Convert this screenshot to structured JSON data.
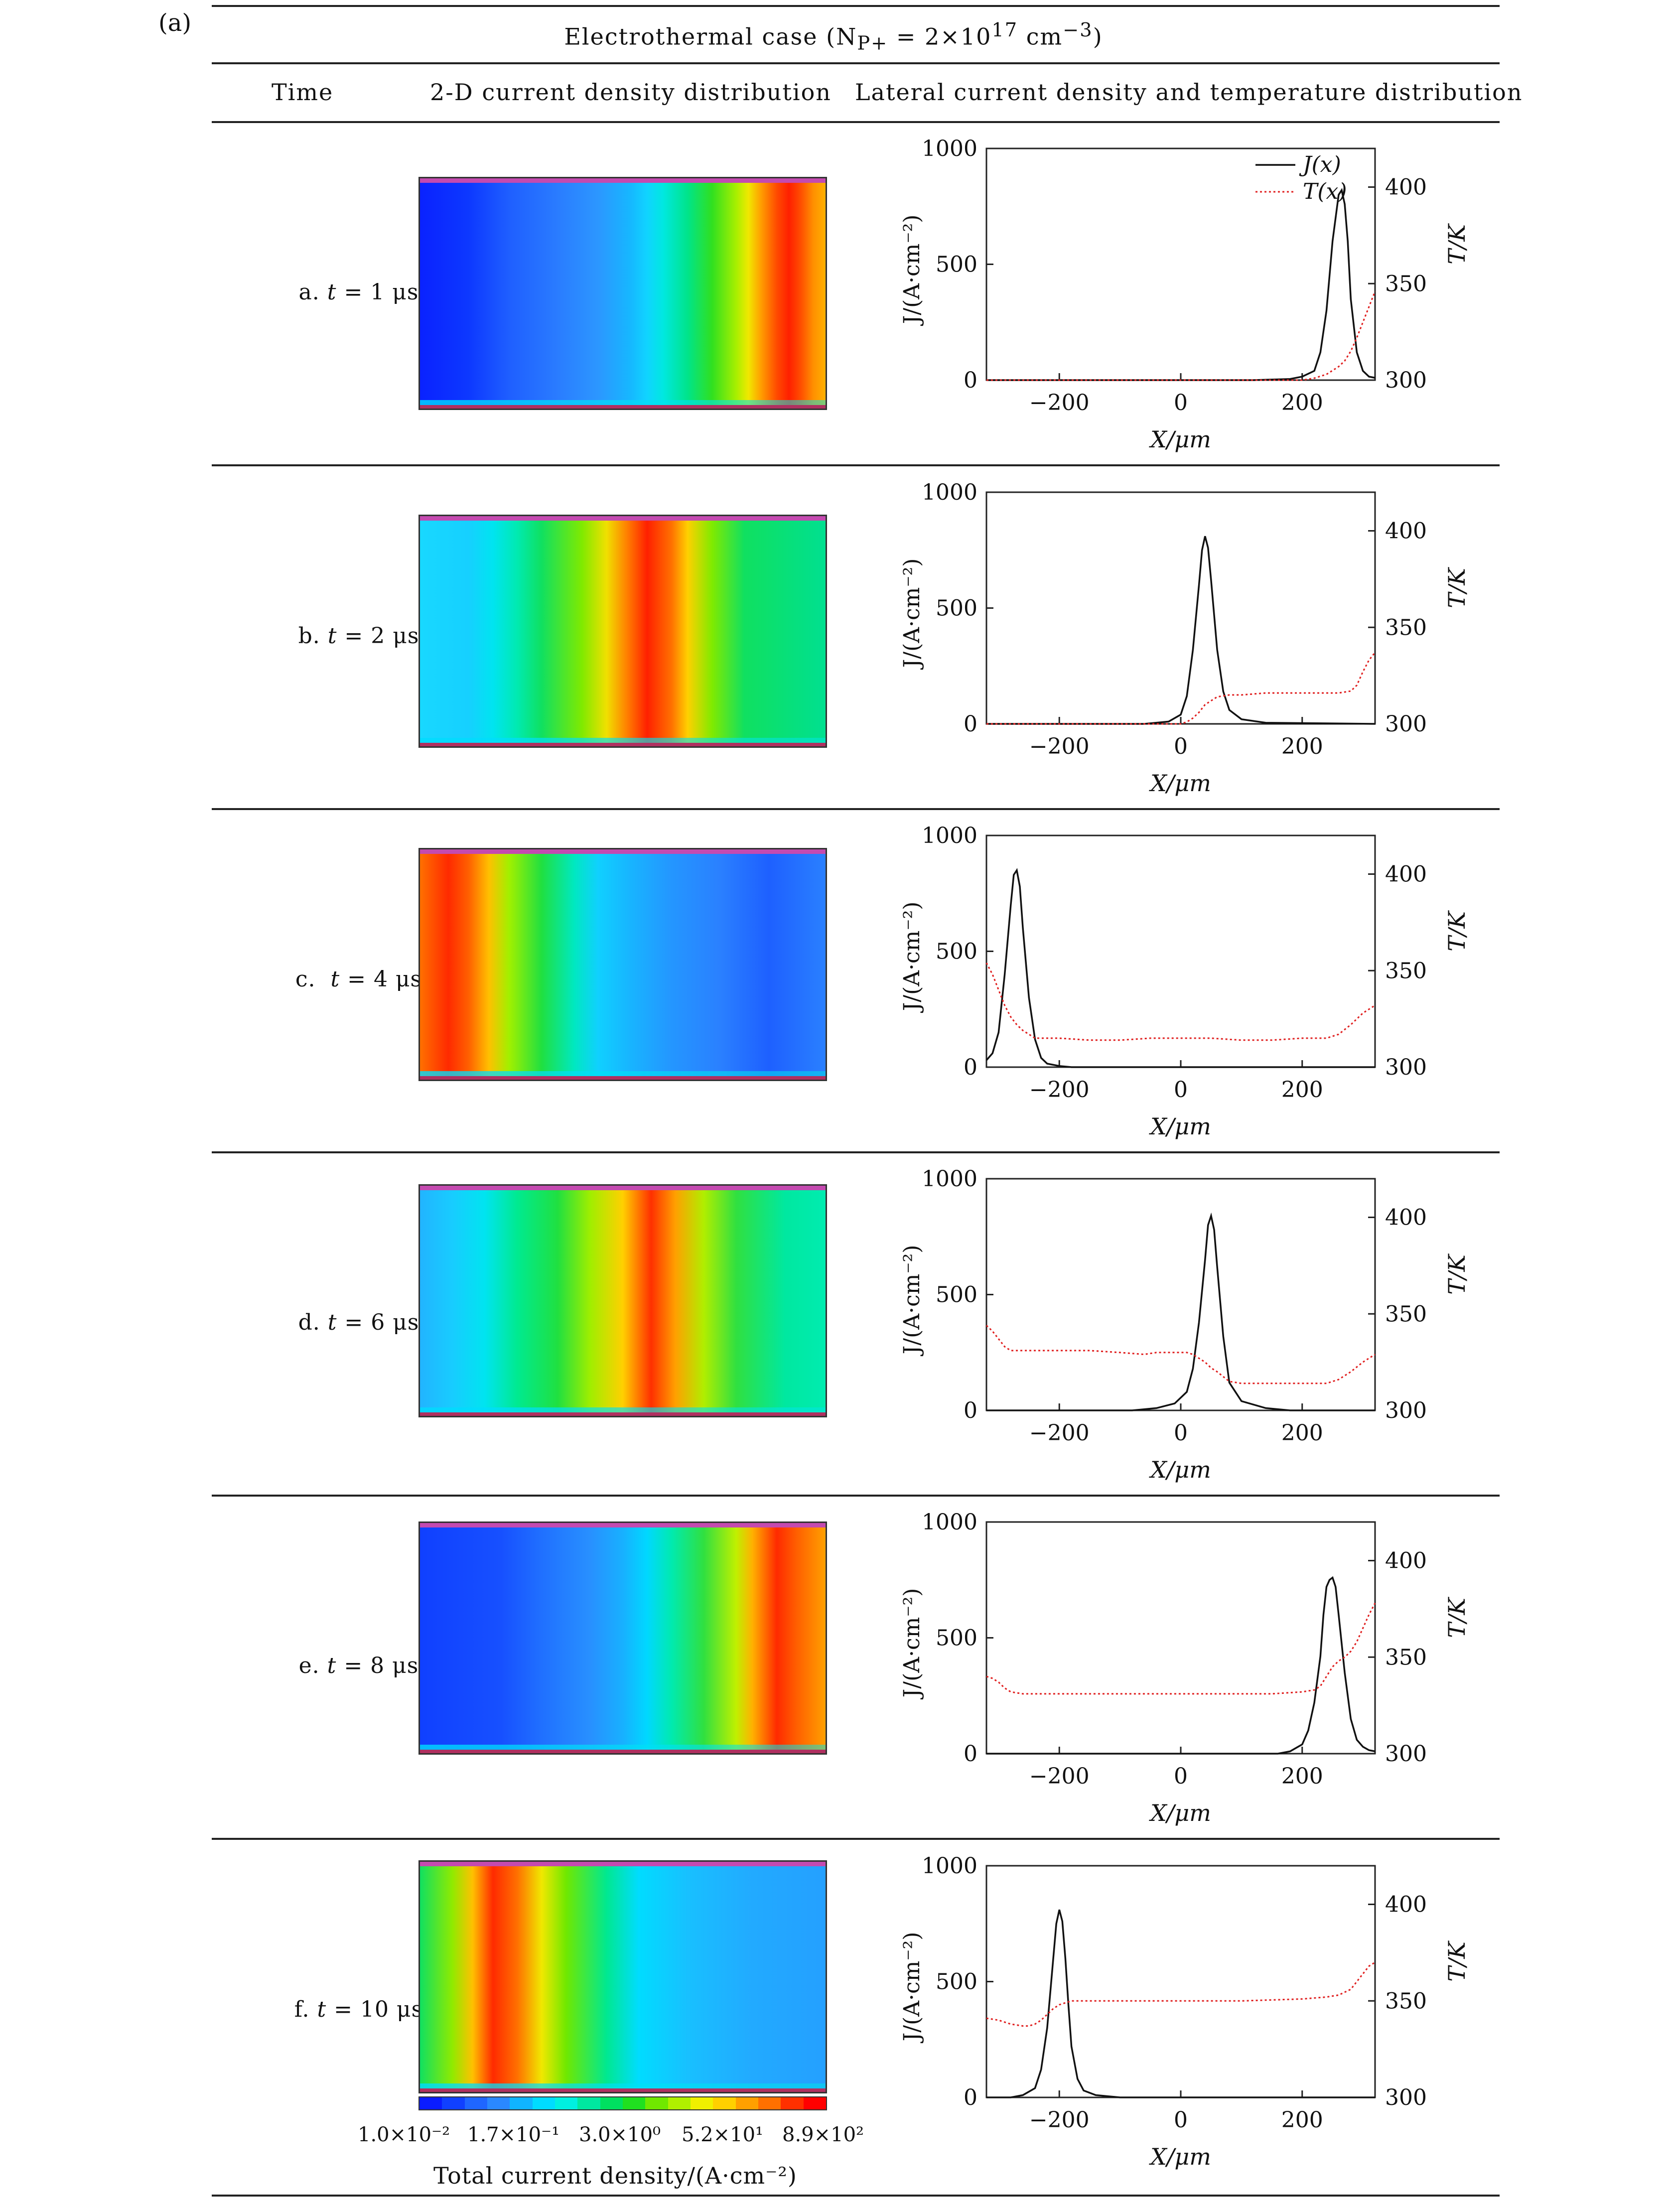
{
  "figure_tag": "(a)",
  "header": {
    "title": "Electrothermal case (N<sub>P+</sub> = 2×10<sup>17</sup> cm<sup>−3</sup>)",
    "title_plain": "Electrothermal case (NP+ = 2×1017 cm−3)",
    "col_time": "Time",
    "col_2d": "2-D current density distribution",
    "col_lateral": "Lateral current density and temperature distribution"
  },
  "rows": [
    {
      "label": "a. t = 1 μs",
      "label_html": "a. <i>t</i> = 1 μs"
    },
    {
      "label": "b. t = 2 μs",
      "label_html": "b. <i>t</i> = 2 μs"
    },
    {
      "label": "c. t = 4 μs",
      "label_html": "c.&nbsp; <i>t</i> = 4 μs"
    },
    {
      "label": "d. t = 6 μs",
      "label_html": "d. <i>t</i> = 6 μs"
    },
    {
      "label": "e. t = 8 μs",
      "label_html": "e. <i>t</i> = 8 μs"
    },
    {
      "label": "f. t = 10 μs",
      "label_html": "f. <i>t</i> = 10 μs"
    }
  ],
  "colorbar": {
    "ticks": [
      "1.0×10⁻²",
      "1.7×10⁻¹",
      "3.0×10⁰",
      "5.2×10¹",
      "8.9×10²"
    ],
    "title": "Total current density/(A·cm⁻²)",
    "colors": [
      "#0a1cff",
      "#1040ff",
      "#1f66ff",
      "#2a88ff",
      "#10b4ff",
      "#00dcff",
      "#00f0e0",
      "#00e8a0",
      "#00e060",
      "#20e020",
      "#70e800",
      "#b0f000",
      "#f0f000",
      "#ffd000",
      "#ffa000",
      "#ff7000",
      "#ff3000",
      "#ff0000"
    ]
  },
  "legend": {
    "j": "J(x)",
    "t": "T(x)"
  },
  "colors": {
    "j_line": "#111111",
    "t_line": "#e02020"
  },
  "chart_data": [
    {
      "type": "line",
      "panel": "a",
      "xlabel": "X/μm",
      "ylabel_left": "J/(A·cm⁻²)",
      "ylabel_right": "T/K",
      "xlim": [
        -320,
        320
      ],
      "ylim_left": [
        0,
        1000
      ],
      "ylim_right": [
        300,
        420
      ],
      "xticks": [
        -200,
        0,
        200
      ],
      "yticks_left": [
        0,
        500,
        1000
      ],
      "yticks_right": [
        300,
        350,
        400
      ],
      "series": [
        {
          "name": "J(x)",
          "axis": "left",
          "x": [
            -320,
            120,
            180,
            200,
            220,
            230,
            240,
            250,
            260,
            265,
            270,
            275,
            280,
            290,
            300,
            310,
            320
          ],
          "y": [
            0,
            0,
            5,
            15,
            40,
            120,
            300,
            600,
            800,
            820,
            760,
            600,
            350,
            120,
            40,
            15,
            10
          ]
        },
        {
          "name": "T(x)",
          "axis": "right",
          "x": [
            -320,
            180,
            200,
            220,
            240,
            260,
            270,
            280,
            290,
            300,
            310,
            320
          ],
          "y": [
            300,
            300,
            300,
            301,
            303,
            307,
            310,
            315,
            322,
            330,
            338,
            346
          ]
        }
      ]
    },
    {
      "type": "line",
      "panel": "b",
      "xlabel": "X/μm",
      "ylabel_left": "J/(A·cm⁻²)",
      "ylabel_right": "T/K",
      "xlim": [
        -320,
        320
      ],
      "ylim_left": [
        0,
        1000
      ],
      "ylim_right": [
        300,
        420
      ],
      "xticks": [
        -200,
        0,
        200
      ],
      "yticks_left": [
        0,
        500,
        1000
      ],
      "yticks_right": [
        300,
        350,
        400
      ],
      "series": [
        {
          "name": "J(x)",
          "axis": "left",
          "x": [
            -320,
            -60,
            -20,
            0,
            10,
            20,
            30,
            35,
            40,
            45,
            50,
            60,
            70,
            80,
            100,
            140,
            320
          ],
          "y": [
            0,
            0,
            10,
            40,
            120,
            320,
            600,
            750,
            810,
            760,
            620,
            320,
            140,
            60,
            20,
            5,
            0
          ]
        },
        {
          "name": "T(x)",
          "axis": "right",
          "x": [
            -320,
            0,
            10,
            20,
            30,
            40,
            60,
            80,
            100,
            140,
            180,
            220,
            260,
            280,
            290,
            300,
            310,
            320
          ],
          "y": [
            300,
            300,
            301,
            303,
            306,
            310,
            314,
            315,
            315,
            316,
            316,
            316,
            316,
            317,
            320,
            327,
            333,
            337
          ]
        }
      ]
    },
    {
      "type": "line",
      "panel": "c",
      "xlabel": "X/μm",
      "ylabel_left": "J/(A·cm⁻²)",
      "ylabel_right": "T/K",
      "xlim": [
        -320,
        320
      ],
      "ylim_left": [
        0,
        1000
      ],
      "ylim_right": [
        300,
        420
      ],
      "xticks": [
        -200,
        0,
        200
      ],
      "yticks_left": [
        0,
        500,
        1000
      ],
      "yticks_right": [
        300,
        350,
        400
      ],
      "series": [
        {
          "name": "J(x)",
          "axis": "left",
          "x": [
            -320,
            -310,
            -300,
            -290,
            -280,
            -275,
            -270,
            -265,
            -260,
            -250,
            -240,
            -230,
            -220,
            -200,
            -180,
            320
          ],
          "y": [
            30,
            60,
            150,
            400,
            700,
            830,
            850,
            780,
            600,
            300,
            120,
            40,
            15,
            5,
            0,
            0
          ]
        },
        {
          "name": "T(x)",
          "axis": "right",
          "x": [
            -320,
            -310,
            -300,
            -290,
            -280,
            -270,
            -260,
            -250,
            -240,
            -220,
            -200,
            -150,
            -100,
            -50,
            0,
            50,
            100,
            150,
            200,
            240,
            260,
            280,
            300,
            320
          ],
          "y": [
            354,
            348,
            340,
            332,
            326,
            322,
            319,
            317,
            315,
            315,
            315,
            314,
            314,
            315,
            315,
            315,
            314,
            314,
            315,
            315,
            317,
            322,
            328,
            332
          ]
        }
      ]
    },
    {
      "type": "line",
      "panel": "d",
      "xlabel": "X/μm",
      "ylabel_left": "J/(A·cm⁻²)",
      "ylabel_right": "T/K",
      "xlim": [
        -320,
        320
      ],
      "ylim_left": [
        0,
        1000
      ],
      "ylim_right": [
        300,
        420
      ],
      "xticks": [
        -200,
        0,
        200
      ],
      "yticks_left": [
        0,
        500,
        1000
      ],
      "yticks_right": [
        300,
        350,
        400
      ],
      "series": [
        {
          "name": "J(x)",
          "axis": "left",
          "x": [
            -320,
            -80,
            -40,
            -10,
            10,
            20,
            30,
            40,
            45,
            50,
            55,
            60,
            70,
            80,
            100,
            140,
            180,
            320
          ],
          "y": [
            0,
            0,
            10,
            30,
            80,
            180,
            380,
            650,
            800,
            840,
            780,
            620,
            320,
            120,
            40,
            10,
            0,
            0
          ]
        },
        {
          "name": "T(x)",
          "axis": "right",
          "x": [
            -320,
            -310,
            -300,
            -290,
            -280,
            -270,
            -250,
            -200,
            -150,
            -100,
            -60,
            -40,
            -20,
            0,
            10,
            20,
            30,
            40,
            50,
            60,
            80,
            100,
            150,
            200,
            240,
            260,
            280,
            300,
            320
          ],
          "y": [
            344,
            341,
            337,
            333,
            331,
            331,
            331,
            331,
            331,
            330,
            329,
            330,
            330,
            330,
            330,
            329,
            327,
            325,
            322,
            320,
            315,
            314,
            314,
            314,
            314,
            316,
            320,
            325,
            329
          ]
        }
      ]
    },
    {
      "type": "line",
      "panel": "e",
      "xlabel": "X/μm",
      "ylabel_left": "J/(A·cm⁻²)",
      "ylabel_right": "T/K",
      "xlim": [
        -320,
        320
      ],
      "ylim_left": [
        0,
        1000
      ],
      "ylim_right": [
        300,
        420
      ],
      "xticks": [
        -200,
        0,
        200
      ],
      "yticks_left": [
        0,
        500,
        1000
      ],
      "yticks_right": [
        300,
        350,
        400
      ],
      "series": [
        {
          "name": "J(x)",
          "axis": "left",
          "x": [
            -320,
            160,
            180,
            200,
            210,
            220,
            230,
            235,
            240,
            245,
            250,
            255,
            260,
            270,
            280,
            290,
            300,
            310,
            320
          ],
          "y": [
            0,
            0,
            10,
            40,
            100,
            220,
            420,
            600,
            720,
            750,
            760,
            720,
            600,
            350,
            150,
            60,
            30,
            15,
            10
          ]
        },
        {
          "name": "T(x)",
          "axis": "right",
          "x": [
            -320,
            -310,
            -300,
            -290,
            -280,
            -260,
            -200,
            -150,
            -100,
            -50,
            0,
            50,
            100,
            150,
            200,
            220,
            230,
            240,
            250,
            260,
            270,
            280,
            290,
            300,
            310,
            320
          ],
          "y": [
            340,
            339,
            337,
            334,
            332,
            331,
            331,
            331,
            331,
            331,
            331,
            331,
            331,
            331,
            332,
            333,
            335,
            340,
            345,
            348,
            350,
            353,
            358,
            365,
            372,
            378
          ]
        }
      ]
    },
    {
      "type": "line",
      "panel": "f",
      "xlabel": "X/μm",
      "ylabel_left": "J/(A·cm⁻²)",
      "ylabel_right": "T/K",
      "xlim": [
        -320,
        320
      ],
      "ylim_left": [
        0,
        1000
      ],
      "ylim_right": [
        300,
        420
      ],
      "xticks": [
        -200,
        0,
        200
      ],
      "yticks_left": [
        0,
        500,
        1000
      ],
      "yticks_right": [
        300,
        350,
        400
      ],
      "series": [
        {
          "name": "J(x)",
          "axis": "left",
          "x": [
            -320,
            -280,
            -260,
            -240,
            -230,
            -220,
            -210,
            -205,
            -200,
            -195,
            -190,
            -185,
            -180,
            -170,
            -160,
            -140,
            -100,
            320
          ],
          "y": [
            0,
            0,
            10,
            40,
            120,
            300,
            600,
            750,
            810,
            760,
            600,
            400,
            220,
            80,
            30,
            10,
            0,
            0
          ]
        },
        {
          "name": "T(x)",
          "axis": "right",
          "x": [
            -320,
            -300,
            -280,
            -260,
            -250,
            -240,
            -230,
            -220,
            -210,
            -200,
            -190,
            -180,
            -160,
            -100,
            0,
            100,
            200,
            240,
            260,
            280,
            290,
            300,
            310,
            320
          ],
          "y": [
            341,
            340,
            338,
            337,
            337,
            338,
            340,
            343,
            346,
            348,
            349,
            350,
            350,
            350,
            350,
            350,
            351,
            352,
            353,
            356,
            360,
            364,
            368,
            370
          ]
        }
      ]
    }
  ]
}
